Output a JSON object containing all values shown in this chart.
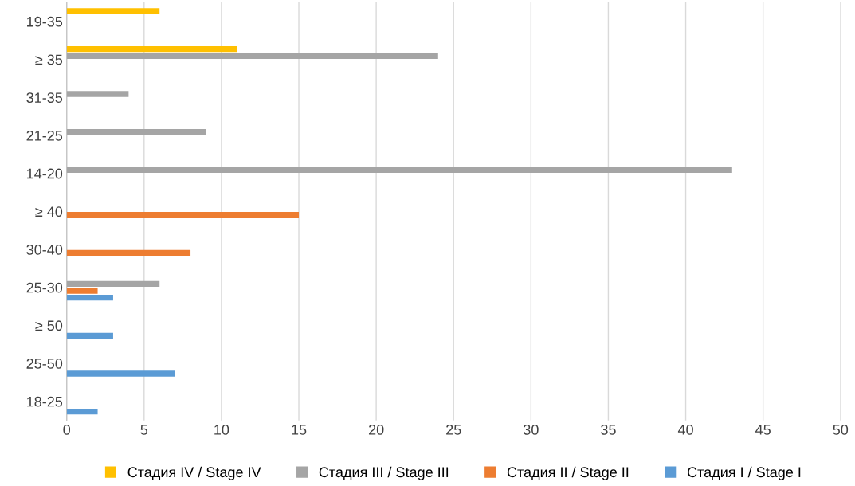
{
  "chart_data": {
    "type": "bar",
    "orientation": "horizontal",
    "categories": [
      "19-35",
      "≥ 35",
      "31-35",
      "21-25",
      "14-20",
      "≥ 40",
      "30-40",
      "25-30",
      "≥ 50",
      "25-50",
      "18-25"
    ],
    "series": [
      {
        "name": "Стадия IV / Stage IV",
        "color": "#ffc000",
        "values": [
          6,
          11,
          null,
          null,
          null,
          null,
          null,
          null,
          null,
          null,
          null
        ]
      },
      {
        "name": "Стадия III / Stage III",
        "color": "#a5a5a5",
        "values": [
          null,
          24,
          4,
          9,
          43,
          null,
          null,
          6,
          null,
          null,
          null
        ]
      },
      {
        "name": "Стадия II / Stage II",
        "color": "#ed7d31",
        "values": [
          null,
          null,
          null,
          null,
          null,
          15,
          8,
          2,
          null,
          null,
          null
        ]
      },
      {
        "name": "Стадия I / Stage I",
        "color": "#5b9bd5",
        "values": [
          null,
          null,
          null,
          null,
          null,
          null,
          null,
          3,
          3,
          7,
          2
        ]
      }
    ],
    "xlim": [
      0,
      50
    ],
    "xticks": [
      0,
      5,
      10,
      15,
      20,
      25,
      30,
      35,
      40,
      45,
      50
    ],
    "grid": "x",
    "legend": "bottom"
  }
}
